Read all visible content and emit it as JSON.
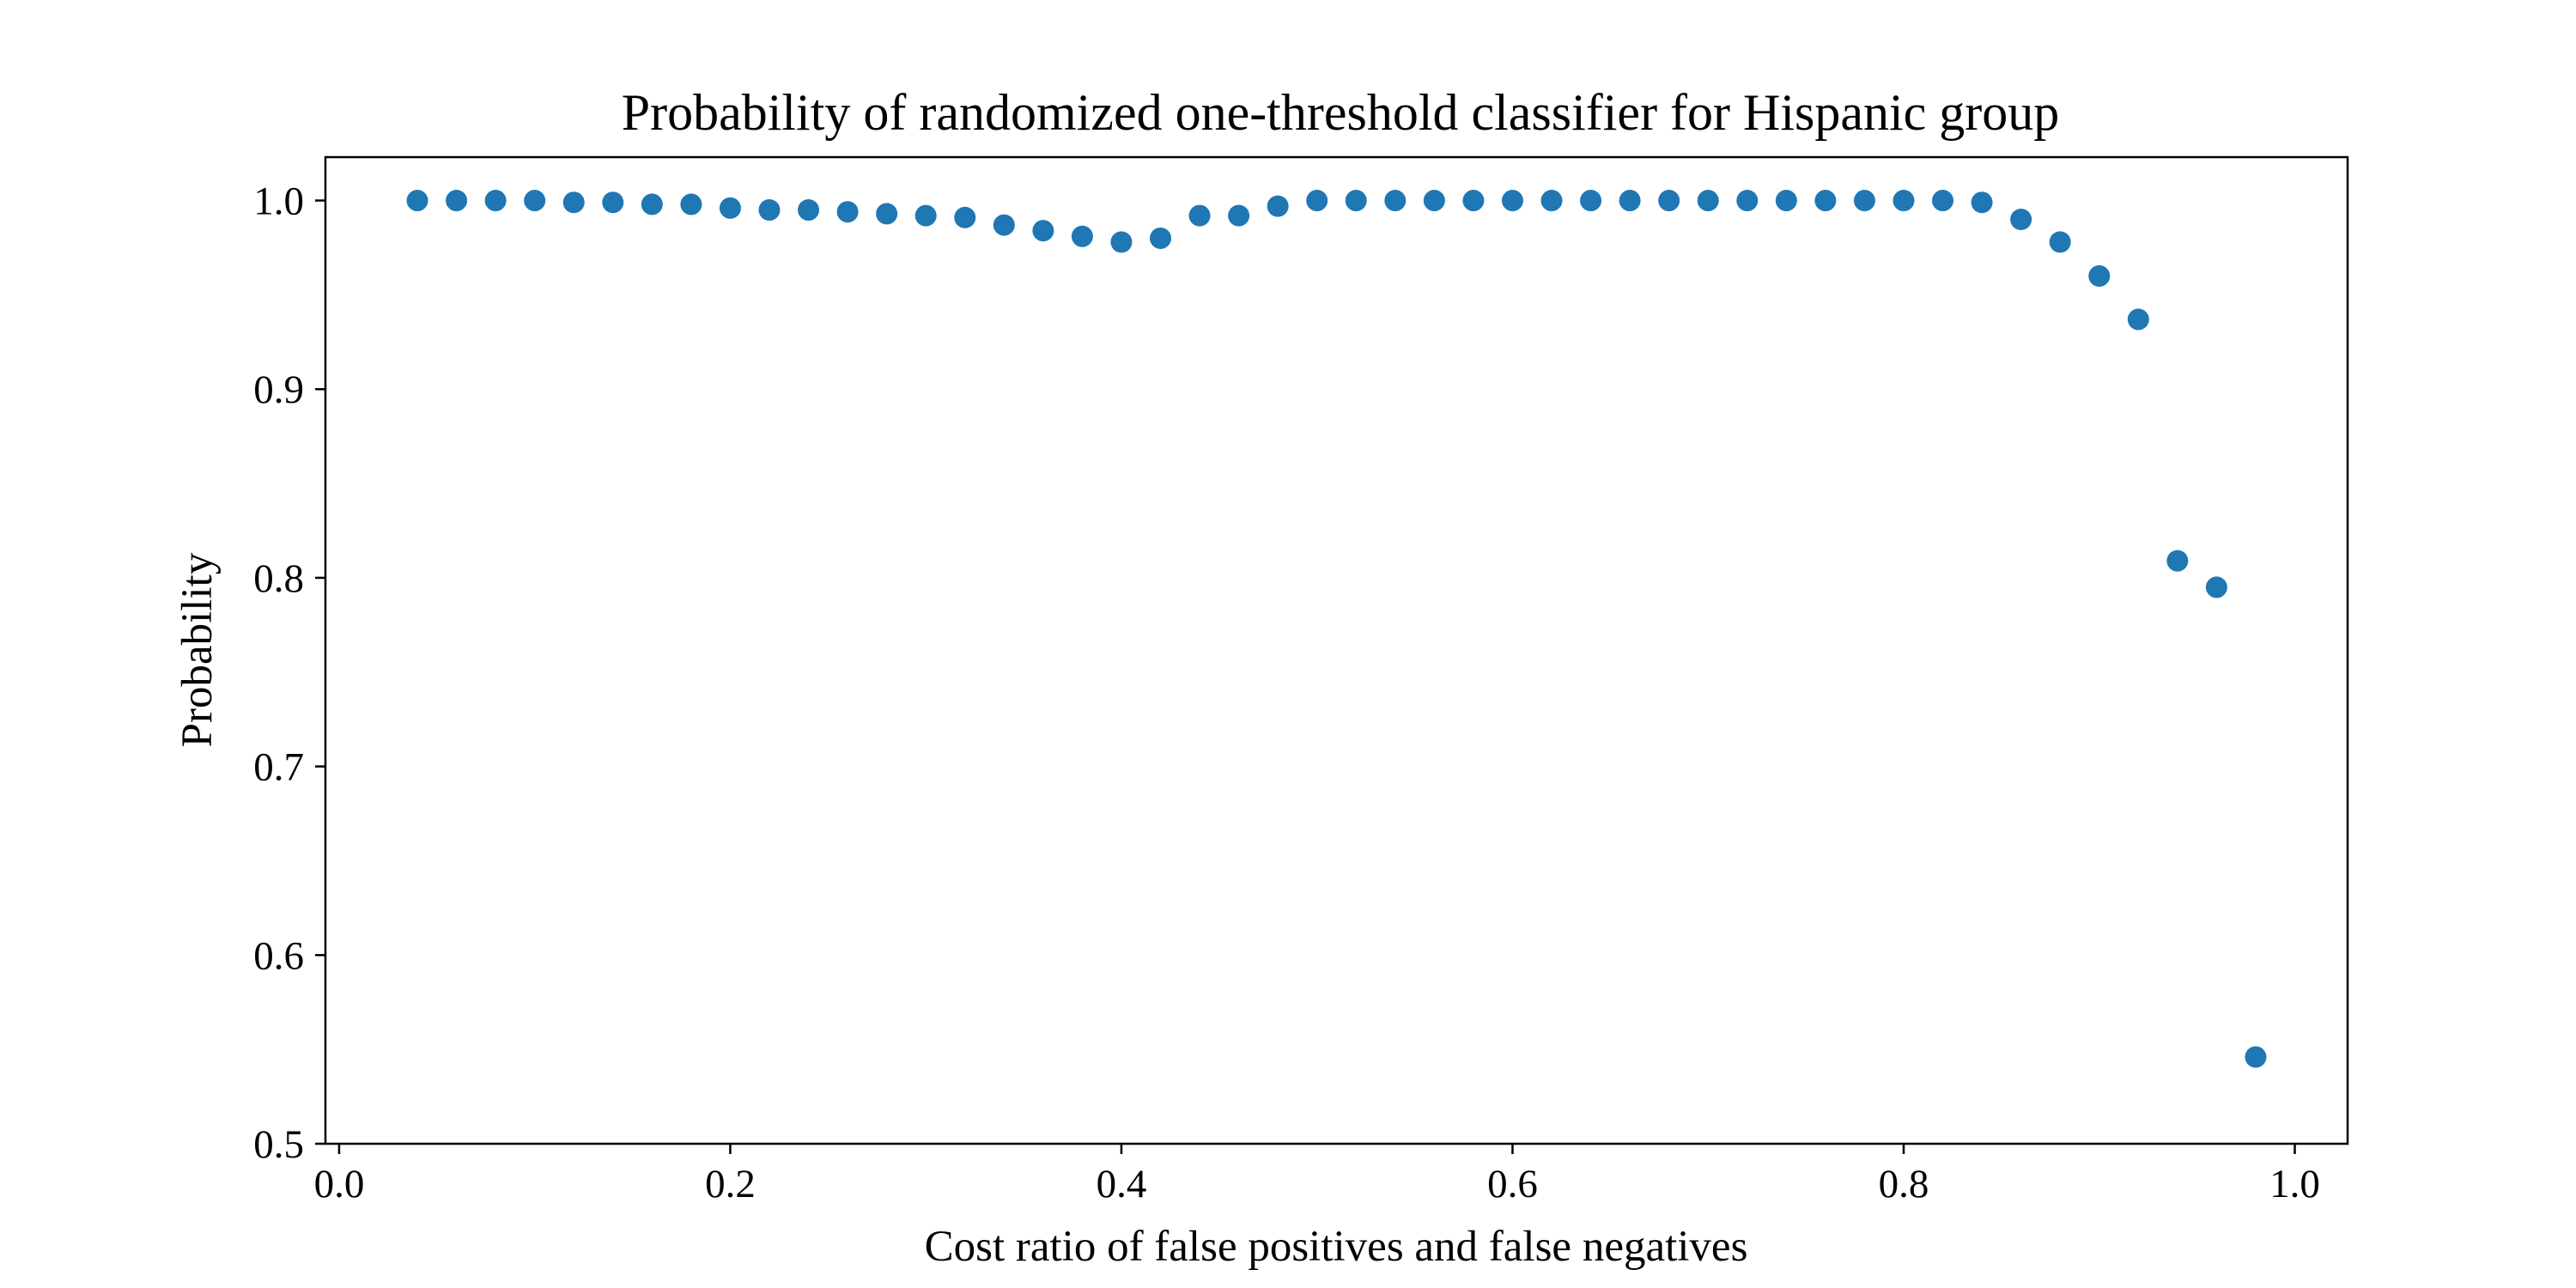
{
  "chart_data": {
    "type": "scatter",
    "title": "Probability of randomized one-threshold classifier for Hispanic group",
    "xlabel": "Cost ratio of false positives and false negatives",
    "ylabel": "Probability",
    "xlim": [
      -0.007,
      1.027
    ],
    "ylim": [
      0.5,
      1.023
    ],
    "x_ticks": [
      "0.0",
      "0.2",
      "0.4",
      "0.6",
      "0.8",
      "1.0"
    ],
    "y_ticks": [
      "0.5",
      "0.6",
      "0.7",
      "0.8",
      "0.9",
      "1.0"
    ],
    "grid": false,
    "legend": "none",
    "marker_color": "#1f77b4",
    "series": [
      {
        "x": [
          0.04,
          0.06,
          0.08,
          0.1,
          0.12,
          0.14,
          0.16,
          0.18,
          0.2,
          0.22,
          0.24,
          0.26,
          0.28,
          0.3,
          0.32,
          0.34,
          0.36,
          0.38,
          0.4,
          0.42,
          0.44,
          0.46,
          0.48,
          0.5,
          0.52,
          0.54,
          0.56,
          0.58,
          0.6,
          0.62,
          0.64,
          0.66,
          0.68,
          0.7,
          0.72,
          0.74,
          0.76,
          0.78,
          0.8,
          0.82,
          0.84,
          0.86,
          0.88,
          0.9,
          0.92,
          0.94,
          0.96,
          0.98
        ],
        "y": [
          1.0,
          1.0,
          1.0,
          1.0,
          0.999,
          0.999,
          0.998,
          0.998,
          0.996,
          0.995,
          0.995,
          0.994,
          0.993,
          0.992,
          0.991,
          0.987,
          0.984,
          0.981,
          0.978,
          0.98,
          0.992,
          0.992,
          0.997,
          1.0,
          1.0,
          1.0,
          1.0,
          1.0,
          1.0,
          1.0,
          1.0,
          1.0,
          1.0,
          1.0,
          1.0,
          1.0,
          1.0,
          1.0,
          1.0,
          1.0,
          0.999,
          0.99,
          0.978,
          0.96,
          0.937,
          0.809,
          0.795,
          0.546
        ]
      }
    ]
  }
}
